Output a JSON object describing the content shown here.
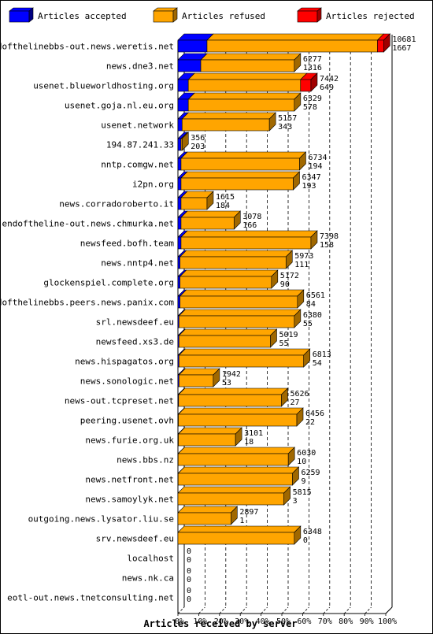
{
  "chart_data": {
    "type": "bar",
    "orientation": "horizontal",
    "stacked": true,
    "xlabel": "Articles received by server",
    "xlim": [
      0,
      100
    ],
    "x_ticks": [
      "0%",
      "10%",
      "20%",
      "30%",
      "40%",
      "50%",
      "60%",
      "70%",
      "80%",
      "90%",
      "100%"
    ],
    "grid": true,
    "legend_position": "top",
    "series": [
      {
        "name": "Articles accepted",
        "color": "#0000ff",
        "side_color": "#000080"
      },
      {
        "name": "Articles refused",
        "color": "#ffa500",
        "side_color": "#a06800"
      },
      {
        "name": "Articles rejected",
        "color": "#ff0000",
        "side_color": "#a00000"
      }
    ],
    "rows": [
      {
        "server": "endofthelinebbs-out.news.weretis.net",
        "accepted_pct": 14,
        "refused_pct": 82,
        "rejected_pct": 3,
        "label1": "10681",
        "label2": "1667"
      },
      {
        "server": "news.dne3.net",
        "accepted_pct": 11,
        "refused_pct": 45,
        "rejected_pct": 0,
        "label1": "6277",
        "label2": "1316"
      },
      {
        "server": "usenet.blueworldhosting.org",
        "accepted_pct": 5,
        "refused_pct": 54,
        "rejected_pct": 5,
        "label1": "7442",
        "label2": "649"
      },
      {
        "server": "usenet.goja.nl.eu.org",
        "accepted_pct": 5,
        "refused_pct": 51,
        "rejected_pct": 0,
        "label1": "6329",
        "label2": "578"
      },
      {
        "server": "usenet.network",
        "accepted_pct": 2,
        "refused_pct": 42,
        "rejected_pct": 0,
        "label1": "5157",
        "label2": "343"
      },
      {
        "server": "194.87.241.33",
        "accepted_pct": 1.5,
        "refused_pct": 0.5,
        "rejected_pct": 0,
        "label1": "356",
        "label2": "203"
      },
      {
        "server": "nntp.comgw.net",
        "accepted_pct": 1.5,
        "refused_pct": 57,
        "rejected_pct": 0,
        "label1": "6734",
        "label2": "194"
      },
      {
        "server": "i2pn.org",
        "accepted_pct": 1.5,
        "refused_pct": 54,
        "rejected_pct": 0,
        "label1": "6347",
        "label2": "193"
      },
      {
        "server": "news.corradoroberto.it",
        "accepted_pct": 1.5,
        "refused_pct": 12.5,
        "rejected_pct": 0,
        "label1": "1615",
        "label2": "184"
      },
      {
        "server": "endoftheline-out.news.chmurka.net",
        "accepted_pct": 1.5,
        "refused_pct": 25.5,
        "rejected_pct": 0,
        "label1": "3078",
        "label2": "166"
      },
      {
        "server": "newsfeed.bofh.team",
        "accepted_pct": 1.5,
        "refused_pct": 62.5,
        "rejected_pct": 0,
        "label1": "7398",
        "label2": "158"
      },
      {
        "server": "news.nntp4.net",
        "accepted_pct": 1,
        "refused_pct": 51,
        "rejected_pct": 0,
        "label1": "5973",
        "label2": "111"
      },
      {
        "server": "glockenspiel.complete.org",
        "accepted_pct": 1,
        "refused_pct": 44,
        "rejected_pct": 0,
        "label1": "5172",
        "label2": "90"
      },
      {
        "server": "endofthelinebbs.peers.news.panix.com",
        "accepted_pct": 1,
        "refused_pct": 56.5,
        "rejected_pct": 0,
        "label1": "6561",
        "label2": "84"
      },
      {
        "server": "srl.newsdeef.eu",
        "accepted_pct": 0.5,
        "refused_pct": 55.5,
        "rejected_pct": 0,
        "label1": "6380",
        "label2": "55"
      },
      {
        "server": "newsfeed.xs3.de",
        "accepted_pct": 0.5,
        "refused_pct": 44,
        "rejected_pct": 0,
        "label1": "5019",
        "label2": "55"
      },
      {
        "server": "news.hispagatos.org",
        "accepted_pct": 0.5,
        "refused_pct": 60,
        "rejected_pct": 0,
        "label1": "6813",
        "label2": "54"
      },
      {
        "server": "news.sonologic.net",
        "accepted_pct": 0.5,
        "refused_pct": 16.5,
        "rejected_pct": 0,
        "label1": "1942",
        "label2": "53"
      },
      {
        "server": "news-out.tcpreset.net",
        "accepted_pct": 0.3,
        "refused_pct": 49.5,
        "rejected_pct": 0,
        "label1": "5626",
        "label2": "27"
      },
      {
        "server": "peering.usenet.ovh",
        "accepted_pct": 0.2,
        "refused_pct": 57,
        "rejected_pct": 0,
        "label1": "6456",
        "label2": "22"
      },
      {
        "server": "news.furie.org.uk",
        "accepted_pct": 0.2,
        "refused_pct": 27.5,
        "rejected_pct": 0,
        "label1": "3101",
        "label2": "18"
      },
      {
        "server": "news.bbs.nz",
        "accepted_pct": 0.1,
        "refused_pct": 53,
        "rejected_pct": 0,
        "label1": "6030",
        "label2": "10"
      },
      {
        "server": "news.netfront.net",
        "accepted_pct": 0.1,
        "refused_pct": 55,
        "rejected_pct": 0,
        "label1": "6259",
        "label2": "9"
      },
      {
        "server": "news.samoylyk.net",
        "accepted_pct": 0,
        "refused_pct": 51,
        "rejected_pct": 0,
        "label1": "5815",
        "label2": "3"
      },
      {
        "server": "outgoing.news.lysator.liu.se",
        "accepted_pct": 0,
        "refused_pct": 25.5,
        "rejected_pct": 0,
        "label1": "2897",
        "label2": "1"
      },
      {
        "server": "srv.newsdeef.eu",
        "accepted_pct": 0,
        "refused_pct": 56,
        "rejected_pct": 0,
        "label1": "6348",
        "label2": "0"
      },
      {
        "server": "localhost",
        "accepted_pct": 0,
        "refused_pct": 0,
        "rejected_pct": 0,
        "label1": "0",
        "label2": "0"
      },
      {
        "server": "news.nk.ca",
        "accepted_pct": 0,
        "refused_pct": 0,
        "rejected_pct": 0,
        "label1": "0",
        "label2": "0"
      },
      {
        "server": "eotl-out.news.tnetconsulting.net",
        "accepted_pct": 0,
        "refused_pct": 0,
        "rejected_pct": 0,
        "label1": "0",
        "label2": "0"
      }
    ]
  }
}
